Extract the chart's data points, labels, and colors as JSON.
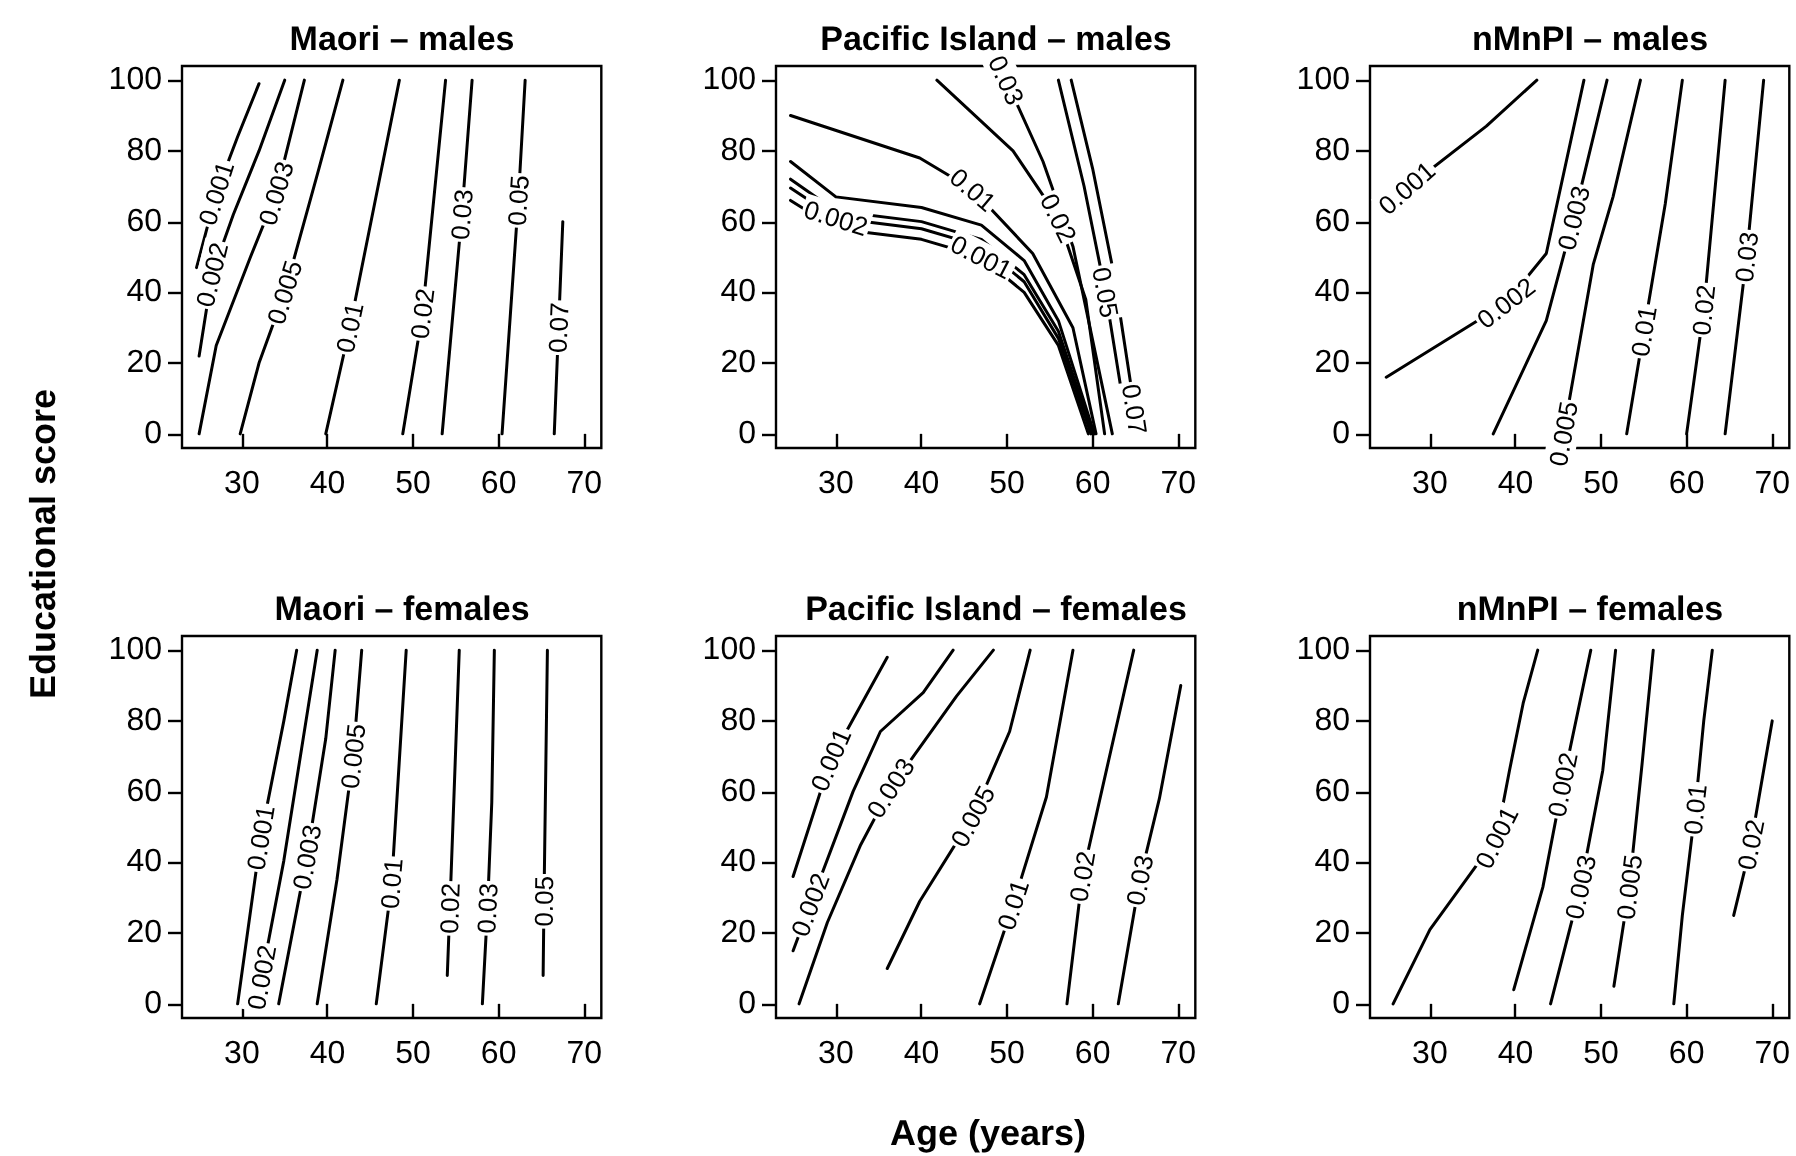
{
  "chart_data": [
    {
      "type": "line",
      "title": "Maori – males",
      "ylabel": "Educational score",
      "xlim": [
        23,
        72
      ],
      "xticks": [
        30,
        40,
        50,
        60,
        70
      ],
      "ylim": [
        -4,
        104
      ],
      "yticks": [
        0,
        20,
        40,
        60,
        80,
        100
      ],
      "series": [
        {
          "name": "0.001",
          "color": "#000000",
          "x": [
            24.7,
            27,
            29.5,
            32
          ],
          "values": [
            47,
            68,
            84,
            99
          ]
        },
        {
          "name": "0.002",
          "color": "#000000",
          "x": [
            25,
            26.5,
            29,
            32,
            35
          ],
          "values": [
            22,
            45,
            62,
            80,
            100
          ]
        },
        {
          "name": "0.003",
          "color": "#000000",
          "x": [
            25,
            27,
            31,
            34,
            37.3
          ],
          "values": [
            0,
            25,
            50,
            68,
            100
          ]
        },
        {
          "name": "0.005",
          "color": "#000000",
          "x": [
            29.8,
            32,
            35,
            39,
            41.8
          ],
          "values": [
            0,
            20,
            40,
            75,
            100
          ]
        },
        {
          "name": "0.01",
          "color": "#000000",
          "x": [
            39.8,
            42.6,
            45.5,
            48.4
          ],
          "values": [
            0,
            30,
            65,
            100
          ]
        },
        {
          "name": "0.02",
          "color": "#000000",
          "x": [
            48.8,
            51.1,
            53.8
          ],
          "values": [
            0,
            34,
            100
          ]
        },
        {
          "name": "0.03",
          "color": "#000000",
          "x": [
            53.4,
            55.7,
            56.9
          ],
          "values": [
            0,
            62,
            100
          ]
        },
        {
          "name": "0.05",
          "color": "#000000",
          "x": [
            60.4,
            62.3,
            63.1
          ],
          "values": [
            0,
            66,
            100
          ]
        },
        {
          "name": "0.07",
          "color": "#000000",
          "x": [
            66.5,
            67,
            67.5
          ],
          "values": [
            0,
            30,
            60
          ]
        }
      ]
    },
    {
      "type": "line",
      "title": "Pacific Island – males",
      "xlim": [
        23,
        72
      ],
      "xticks": [
        30,
        40,
        50,
        60,
        70
      ],
      "ylim": [
        -4,
        104
      ],
      "yticks": [
        0,
        20,
        40,
        60,
        80,
        100
      ],
      "series": [
        {
          "name": "0.001",
          "color": "#000000",
          "x": [
            24.7,
            30,
            40,
            47,
            52,
            56,
            59.5
          ],
          "values": [
            66,
            58,
            55,
            50,
            40,
            25,
            0
          ]
        },
        {
          "name": "0.002",
          "color": "#000000",
          "x": [
            24.7,
            30,
            40,
            47,
            52,
            56,
            59.8
          ],
          "values": [
            69.5,
            61,
            58,
            53,
            43,
            27,
            0
          ]
        },
        {
          "color": "#000000",
          "x": [
            24.7,
            30,
            40,
            47,
            52,
            56,
            60
          ],
          "values": [
            72,
            63,
            60,
            55,
            45,
            29,
            0
          ]
        },
        {
          "color": "#000000",
          "x": [
            24.7,
            30,
            40,
            47,
            52,
            56,
            60.2
          ],
          "values": [
            77,
            67,
            64,
            59,
            49,
            32,
            0
          ]
        },
        {
          "name": "0.01",
          "color": "#000000",
          "x": [
            24.7,
            39.8,
            46,
            53,
            57.7,
            60.4
          ],
          "values": [
            90,
            78,
            69,
            51,
            30,
            0
          ]
        },
        {
          "name": "0.02",
          "color": "#000000",
          "x": [
            41.8,
            50.7,
            56,
            59.2,
            61.4
          ],
          "values": [
            100,
            80,
            61,
            38,
            0
          ]
        },
        {
          "name": "0.03",
          "color": "#000000",
          "x": [
            49.9,
            54.2,
            57.7,
            62.3
          ],
          "values": [
            100,
            77,
            53,
            0
          ]
        },
        {
          "name": "0.05",
          "color": "#000000",
          "x": [
            56,
            59,
            61.5,
            63.5,
            64.3
          ],
          "values": [
            100,
            70,
            40,
            10,
            0
          ]
        },
        {
          "name": "0.07",
          "color": "#000000",
          "x": [
            57.5,
            60,
            62.5,
            64.9
          ],
          "values": [
            100,
            75,
            45,
            7
          ]
        }
      ]
    },
    {
      "type": "line",
      "title": "nMnPI – males",
      "xlim": [
        23,
        72
      ],
      "xticks": [
        30,
        40,
        50,
        60,
        70
      ],
      "ylim": [
        -4,
        104
      ],
      "yticks": [
        0,
        20,
        40,
        60,
        80,
        100
      ],
      "series": [
        {
          "name": "0.001",
          "color": "#000000",
          "x": [
            24.9,
            27.3,
            36.6,
            42.5
          ],
          "values": [
            62,
            69.5,
            87,
            100
          ]
        },
        {
          "name": "0.002",
          "color": "#000000",
          "x": [
            24.9,
            38.9,
            43.6,
            48
          ],
          "values": [
            16,
            37,
            51,
            100
          ]
        },
        {
          "name": "0.003",
          "color": "#000000",
          "x": [
            37.4,
            43.6,
            46.8,
            50.7
          ],
          "values": [
            0,
            32,
            61,
            100
          ]
        },
        {
          "name": "0.005",
          "color": "#000000",
          "x": [
            45.6,
            49.1,
            51.4,
            54.6
          ],
          "values": [
            0,
            48,
            67,
            100
          ]
        },
        {
          "name": "0.01",
          "color": "#000000",
          "x": [
            53,
            55,
            57.5,
            59.5
          ],
          "values": [
            0,
            29,
            65,
            100
          ]
        },
        {
          "name": "0.02",
          "color": "#000000",
          "x": [
            60,
            62,
            64.5
          ],
          "values": [
            0,
            35,
            100
          ]
        },
        {
          "name": "0.03",
          "color": "#000000",
          "x": [
            64.5,
            67,
            69
          ],
          "values": [
            0,
            50,
            100
          ]
        }
      ]
    },
    {
      "type": "line",
      "title": "Maori – females",
      "xlim": [
        23,
        72
      ],
      "xticks": [
        30,
        40,
        50,
        60,
        70
      ],
      "ylim": [
        -4,
        104
      ],
      "yticks": [
        0,
        20,
        40,
        60,
        80,
        100
      ],
      "series": [
        {
          "name": "0.001",
          "color": "#000000",
          "x": [
            29.5,
            32.2,
            34.9,
            36.4
          ],
          "values": [
            0,
            47,
            80,
            100
          ]
        },
        {
          "name": "0.002",
          "color": "#000000",
          "x": [
            31.8,
            32.3,
            34.9,
            38.8
          ],
          "values": [
            0,
            7.5,
            40.5,
            100
          ]
        },
        {
          "name": "0.003",
          "color": "#000000",
          "x": [
            34.3,
            37.6,
            39.8,
            40.9
          ],
          "values": [
            0,
            41.5,
            75,
            100
          ]
        },
        {
          "name": "0.005",
          "color": "#000000",
          "x": [
            38.8,
            41.1,
            43,
            44
          ],
          "values": [
            0,
            35,
            70,
            100
          ]
        },
        {
          "name": "0.01",
          "color": "#000000",
          "x": [
            45.7,
            47.5,
            49.2
          ],
          "values": [
            0,
            34,
            100
          ]
        },
        {
          "name": "0.02",
          "color": "#000000",
          "x": [
            54,
            54.3,
            54.8,
            55.4
          ],
          "values": [
            8,
            27,
            60,
            100
          ]
        },
        {
          "name": "0.03",
          "color": "#000000",
          "x": [
            58.1,
            58.7,
            59.2,
            59.5
          ],
          "values": [
            0,
            27,
            57,
            100
          ]
        },
        {
          "name": "0.05",
          "color": "#000000",
          "x": [
            65.2,
            65.3,
            65.7
          ],
          "values": [
            8,
            29,
            100
          ]
        }
      ]
    },
    {
      "type": "line",
      "title": "Pacific Island – females",
      "xlabel": "Age (years)",
      "xlim": [
        23,
        72
      ],
      "xticks": [
        30,
        40,
        50,
        60,
        70
      ],
      "ylim": [
        -4,
        104
      ],
      "yticks": [
        0,
        20,
        40,
        60,
        80,
        100
      ],
      "series": [
        {
          "name": "0.001",
          "color": "#000000",
          "x": [
            25,
            29.4,
            36
          ],
          "values": [
            36,
            69,
            98
          ]
        },
        {
          "name": "0.002",
          "color": "#000000",
          "x": [
            25,
            27,
            32,
            35.2,
            40.2,
            43.7
          ],
          "values": [
            15,
            28,
            60,
            77,
            88,
            100
          ]
        },
        {
          "name": "0.003",
          "color": "#000000",
          "x": [
            25.7,
            29,
            32.9,
            36.4,
            44.1,
            48.4
          ],
          "values": [
            0,
            23,
            45,
            61,
            87,
            100
          ]
        },
        {
          "name": "0.005",
          "color": "#000000",
          "x": [
            36,
            39.8,
            46,
            50.3,
            52.7
          ],
          "values": [
            10,
            29,
            53,
            77,
            100
          ]
        },
        {
          "name": "0.01",
          "color": "#000000",
          "x": [
            46.8,
            50.7,
            54.6,
            57.7
          ],
          "values": [
            0,
            28,
            58.5,
            100
          ]
        },
        {
          "name": "0.02",
          "color": "#000000",
          "x": [
            57,
            58.8,
            61.7,
            64.8
          ],
          "values": [
            0,
            36,
            67,
            100
          ]
        },
        {
          "name": "0.03",
          "color": "#000000",
          "x": [
            63,
            65.5,
            67.8,
            70.3
          ],
          "values": [
            0,
            35,
            58,
            90
          ]
        }
      ]
    },
    {
      "type": "line",
      "title": "nMnPI – females",
      "xlim": [
        23,
        72
      ],
      "xticks": [
        30,
        40,
        50,
        60,
        70
      ],
      "ylim": [
        -4,
        104
      ],
      "yticks": [
        0,
        20,
        40,
        60,
        80,
        100
      ],
      "series": [
        {
          "name": "0.001",
          "color": "#000000",
          "x": [
            25.7,
            30,
            37.8,
            39.3,
            40.9,
            42.6
          ],
          "values": [
            0,
            21,
            47,
            66,
            85,
            100
          ]
        },
        {
          "name": "0.002",
          "color": "#000000",
          "x": [
            39.8,
            43.2,
            45.5,
            48.8
          ],
          "values": [
            4,
            33,
            62,
            100
          ]
        },
        {
          "name": "0.003",
          "color": "#000000",
          "x": [
            44.1,
            47.6,
            50.2,
            51.7
          ],
          "values": [
            0,
            33,
            66,
            100
          ]
        },
        {
          "name": "0.005",
          "color": "#000000",
          "x": [
            51.5,
            53.3,
            54.8,
            56.1
          ],
          "values": [
            5,
            33,
            68,
            100
          ]
        },
        {
          "name": "0.01",
          "color": "#000000",
          "x": [
            58.5,
            59.5,
            61,
            62,
            63
          ],
          "values": [
            0,
            25,
            55,
            80,
            100
          ]
        },
        {
          "name": "0.02",
          "color": "#000000",
          "x": [
            65.5,
            67.5,
            70
          ],
          "values": [
            25,
            45,
            80
          ]
        }
      ]
    }
  ]
}
